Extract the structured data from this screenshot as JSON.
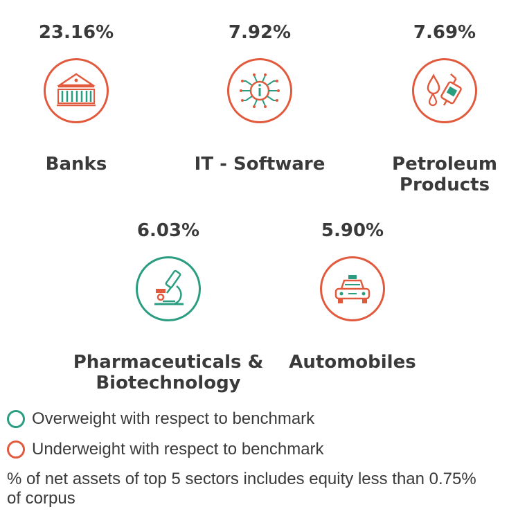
{
  "chart_data": {
    "type": "table",
    "sectors": [
      {
        "name": "Banks",
        "percent": 23.16,
        "percent_label": "23.16%",
        "weight": "underweight",
        "icon": "bank-building-icon"
      },
      {
        "name": "IT - Software",
        "percent": 7.92,
        "percent_label": "7.92%",
        "weight": "underweight",
        "icon": "circuit-chip-icon"
      },
      {
        "name": "Petroleum Products",
        "percent": 7.69,
        "percent_label": "7.69%",
        "weight": "underweight",
        "icon": "fuel-nozzle-icon"
      },
      {
        "name": "Pharmaceuticals & Biotechnology",
        "percent": 6.03,
        "percent_label": "6.03%",
        "weight": "overweight",
        "icon": "microscope-icon"
      },
      {
        "name": "Automobiles",
        "percent": 5.9,
        "percent_label": "5.90%",
        "weight": "underweight",
        "icon": "car-icon"
      }
    ],
    "legend": [
      {
        "label": "Overweight with respect to benchmark",
        "color": "#2a9d80"
      },
      {
        "label": "Underweight with respect to benchmark",
        "color": "#e25a3d"
      }
    ],
    "footnote": "% of net assets of top 5 sectors includes equity less than 0.75% of corpus"
  },
  "colors": {
    "overweight": "#2a9d80",
    "underweight": "#e25a3d",
    "text": "#3a3a3a"
  }
}
